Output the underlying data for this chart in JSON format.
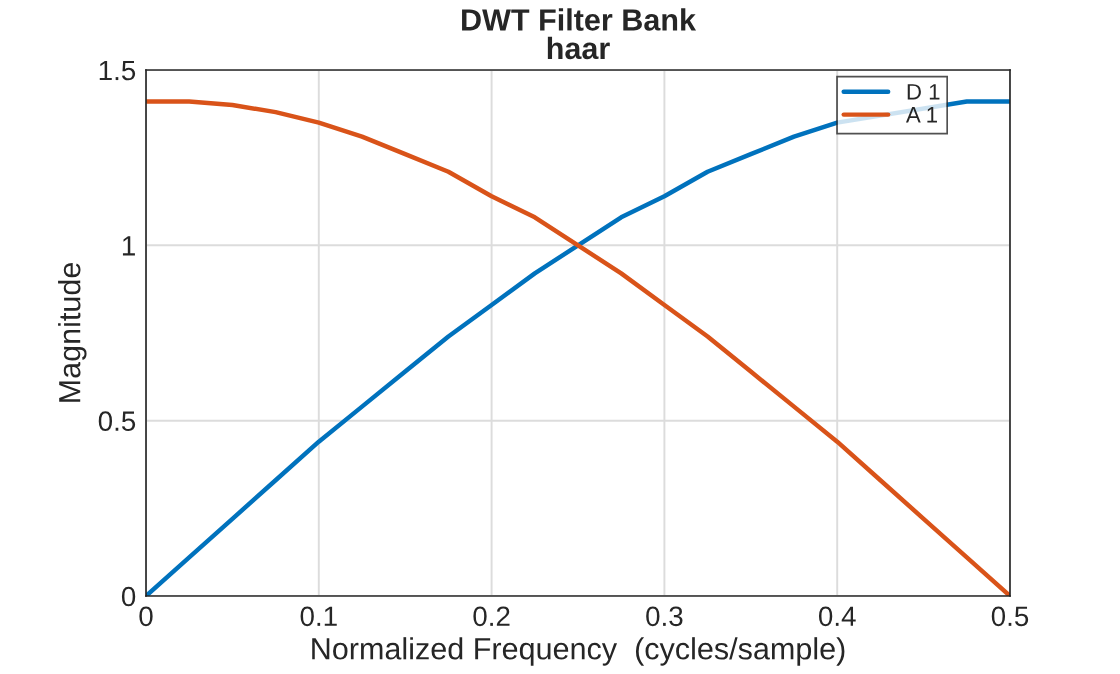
{
  "chart_data": {
    "type": "line",
    "title": "DWT Filter Bank\nhaar",
    "xlabel": "Normalized Frequency  (cycles/sample)",
    "ylabel": "Magnitude",
    "x": [
      0,
      0.025,
      0.05,
      0.075,
      0.1,
      0.125,
      0.15,
      0.175,
      0.2,
      0.225,
      0.25,
      0.275,
      0.3,
      0.325,
      0.35,
      0.375,
      0.4,
      0.425,
      0.45,
      0.475,
      0.5
    ],
    "series": [
      {
        "name": "D 1",
        "color": "#0072bd",
        "values": [
          0,
          0.11,
          0.22,
          0.33,
          0.44,
          0.54,
          0.64,
          0.74,
          0.83,
          0.92,
          1.0,
          1.08,
          1.14,
          1.21,
          1.26,
          1.31,
          1.35,
          null,
          null,
          1.41,
          1.41
        ]
      },
      {
        "name": "A 1",
        "color": "#d95319",
        "values": [
          1.41,
          1.41,
          1.4,
          1.38,
          1.35,
          1.31,
          1.26,
          1.21,
          1.14,
          1.08,
          1.0,
          0.92,
          0.83,
          0.74,
          0.64,
          0.54,
          0.44,
          0.33,
          0.22,
          0.11,
          0
        ]
      }
    ],
    "xlim": [
      0,
      0.5
    ],
    "xticks": [
      0,
      0.1,
      0.2,
      0.3,
      0.4,
      0.5
    ],
    "ylim": [
      0,
      1.5
    ],
    "yticks": [
      0,
      0.5,
      1,
      1.5
    ],
    "grid": true,
    "legend": "top right",
    "marker": "none",
    "line_style": "solid"
  }
}
